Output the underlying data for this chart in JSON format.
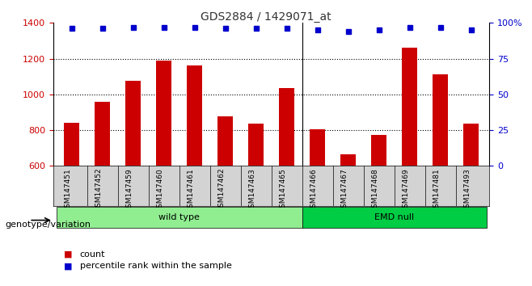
{
  "title": "GDS2884 / 1429071_at",
  "samples": [
    "GSM147451",
    "GSM147452",
    "GSM147459",
    "GSM147460",
    "GSM147461",
    "GSM147462",
    "GSM147463",
    "GSM147465",
    "GSM147466",
    "GSM147467",
    "GSM147468",
    "GSM147469",
    "GSM147481",
    "GSM147493"
  ],
  "counts": [
    840,
    960,
    1075,
    1190,
    1160,
    875,
    835,
    1035,
    805,
    665,
    775,
    1260,
    1110,
    835
  ],
  "percentile_ranks": [
    96,
    96,
    97,
    97,
    97,
    96,
    96,
    96,
    95,
    94,
    95,
    97,
    97,
    95
  ],
  "percentile_scale": 100,
  "bar_color": "#cc0000",
  "dot_color": "#0000cc",
  "ylim_left": [
    600,
    1400
  ],
  "yticks_left": [
    600,
    800,
    1000,
    1200,
    1400
  ],
  "ylim_right": [
    0,
    100
  ],
  "yticks_right": [
    0,
    25,
    50,
    75,
    100
  ],
  "groups": [
    {
      "label": "wild type",
      "start": 0,
      "end": 7,
      "color": "#90ee90"
    },
    {
      "label": "EMD null",
      "start": 8,
      "end": 13,
      "color": "#00cc44"
    }
  ],
  "xlabel_genotype": "genotype/variation",
  "legend_count": "count",
  "legend_percentile": "percentile rank within the sample",
  "grid_color": "#000000",
  "bg_color": "#ffffff",
  "tick_label_color_left": "#cc0000",
  "tick_label_color_right": "#0000cc",
  "title_color": "#333333"
}
